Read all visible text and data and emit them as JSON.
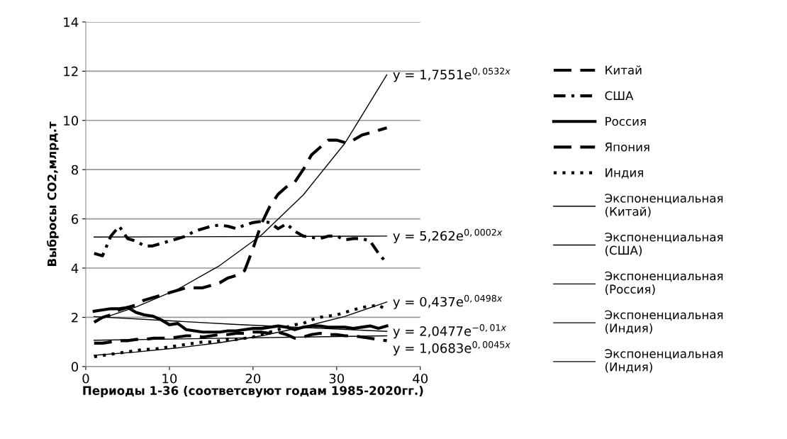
{
  "chart_data": {
    "type": "line",
    "xlabel": "Периоды 1-36 (соответсвуют годам 1985-2020гг.)",
    "ylabel": "Выбросы СО2,млрд.т",
    "x": [
      1,
      2,
      3,
      4,
      5,
      6,
      7,
      8,
      9,
      10,
      11,
      12,
      13,
      14,
      15,
      16,
      17,
      18,
      19,
      20,
      21,
      22,
      23,
      24,
      25,
      26,
      27,
      28,
      29,
      30,
      31,
      32,
      33,
      34,
      35,
      36
    ],
    "xlim": [
      0,
      40
    ],
    "xticks": [
      0,
      10,
      20,
      30,
      40
    ],
    "ylim": [
      0,
      14
    ],
    "yticks": [
      0,
      2,
      4,
      6,
      8,
      10,
      12,
      14
    ],
    "grid": "y",
    "legend": "right",
    "series": [
      {
        "name": "Китай",
        "color": "#000000",
        "line_style": "dashed",
        "values": [
          1.8,
          2.0,
          2.1,
          2.3,
          2.4,
          2.5,
          2.7,
          2.8,
          2.9,
          3.0,
          3.1,
          3.2,
          3.2,
          3.2,
          3.3,
          3.4,
          3.6,
          3.7,
          3.9,
          4.8,
          5.8,
          6.5,
          7.0,
          7.3,
          7.5,
          8.0,
          8.6,
          8.9,
          9.2,
          9.2,
          9.1,
          9.2,
          9.4,
          9.5,
          9.6,
          9.7
        ]
      },
      {
        "name": "США",
        "color": "#000000",
        "line_style": "dashdot",
        "values": [
          4.6,
          4.5,
          5.3,
          5.7,
          5.2,
          5.1,
          4.9,
          4.9,
          5.0,
          5.1,
          5.2,
          5.3,
          5.5,
          5.6,
          5.7,
          5.75,
          5.7,
          5.6,
          5.75,
          5.85,
          5.9,
          5.85,
          5.6,
          5.8,
          5.5,
          5.3,
          5.25,
          5.2,
          5.3,
          5.3,
          5.15,
          5.2,
          5.2,
          5.1,
          4.6,
          4.2
        ]
      },
      {
        "name": "Россия",
        "color": "#000000",
        "line_style": "solid",
        "values": [
          2.25,
          2.3,
          2.35,
          2.35,
          2.4,
          2.2,
          2.1,
          2.05,
          1.9,
          1.7,
          1.75,
          1.5,
          1.45,
          1.4,
          1.4,
          1.4,
          1.45,
          1.45,
          1.5,
          1.55,
          1.55,
          1.6,
          1.65,
          1.6,
          1.5,
          1.6,
          1.65,
          1.65,
          1.6,
          1.6,
          1.6,
          1.55,
          1.6,
          1.65,
          1.55,
          1.65
        ]
      },
      {
        "name": "Япония",
        "color": "#000000",
        "line_style": "dashed",
        "values": [
          0.95,
          0.95,
          1.0,
          1.05,
          1.05,
          1.1,
          1.1,
          1.15,
          1.15,
          1.15,
          1.2,
          1.25,
          1.25,
          1.2,
          1.25,
          1.3,
          1.3,
          1.35,
          1.35,
          1.4,
          1.4,
          1.35,
          1.4,
          1.3,
          1.15,
          1.2,
          1.3,
          1.35,
          1.3,
          1.3,
          1.25,
          1.25,
          1.2,
          1.15,
          1.1,
          1.05
        ]
      },
      {
        "name": "Индия",
        "color": "#000000",
        "line_style": "dotted",
        "values": [
          0.4,
          0.45,
          0.5,
          0.55,
          0.6,
          0.65,
          0.7,
          0.7,
          0.75,
          0.8,
          0.85,
          0.9,
          0.95,
          1.0,
          1.0,
          1.05,
          1.1,
          1.1,
          1.15,
          1.2,
          1.3,
          1.4,
          1.5,
          1.6,
          1.7,
          1.75,
          1.9,
          2.0,
          2.05,
          2.1,
          2.2,
          2.3,
          2.4,
          2.45,
          2.5,
          2.3
        ]
      },
      {
        "name": "Экспоненциальная\n(Китай)",
        "color": "#000000",
        "line_style": "solid",
        "x": [
          1,
          6,
          11,
          16,
          21,
          26,
          31,
          36
        ],
        "values": [
          1.85,
          2.42,
          3.14,
          4.1,
          5.34,
          6.97,
          9.08,
          11.85
        ]
      },
      {
        "name": "Экспоненциальная\n(США)",
        "color": "#000000",
        "line_style": "solid",
        "x": [
          1,
          36
        ],
        "values": [
          5.26,
          5.3
        ]
      },
      {
        "name": "Экспоненциальная\n(Россия)",
        "color": "#000000",
        "line_style": "solid",
        "x": [
          1,
          18,
          36
        ],
        "values": [
          2.03,
          1.71,
          1.43
        ]
      },
      {
        "name": "Экспоненциальная\n(Индия)",
        "color": "#000000",
        "line_style": "solid",
        "x": [
          1,
          6,
          11,
          16,
          21,
          26,
          31,
          36
        ],
        "values": [
          0.46,
          0.59,
          0.76,
          0.97,
          1.25,
          1.61,
          2.04,
          2.62
        ]
      },
      {
        "name": "Экспоненциальная\n(Индия)",
        "color": "#000000",
        "line_style": "solid",
        "x": [
          1,
          36
        ],
        "values": [
          1.07,
          1.25
        ]
      }
    ],
    "annotations": [
      "y = 1,7551e$^{0,0532x}$",
      "y = 5,262e$^{0,0002x}$",
      "y = 2,0477e$^{−0,01x}$",
      "y = 0,437e$^{0,0498x}$",
      "y = 1,0683e$^{0,0045x}$"
    ]
  }
}
